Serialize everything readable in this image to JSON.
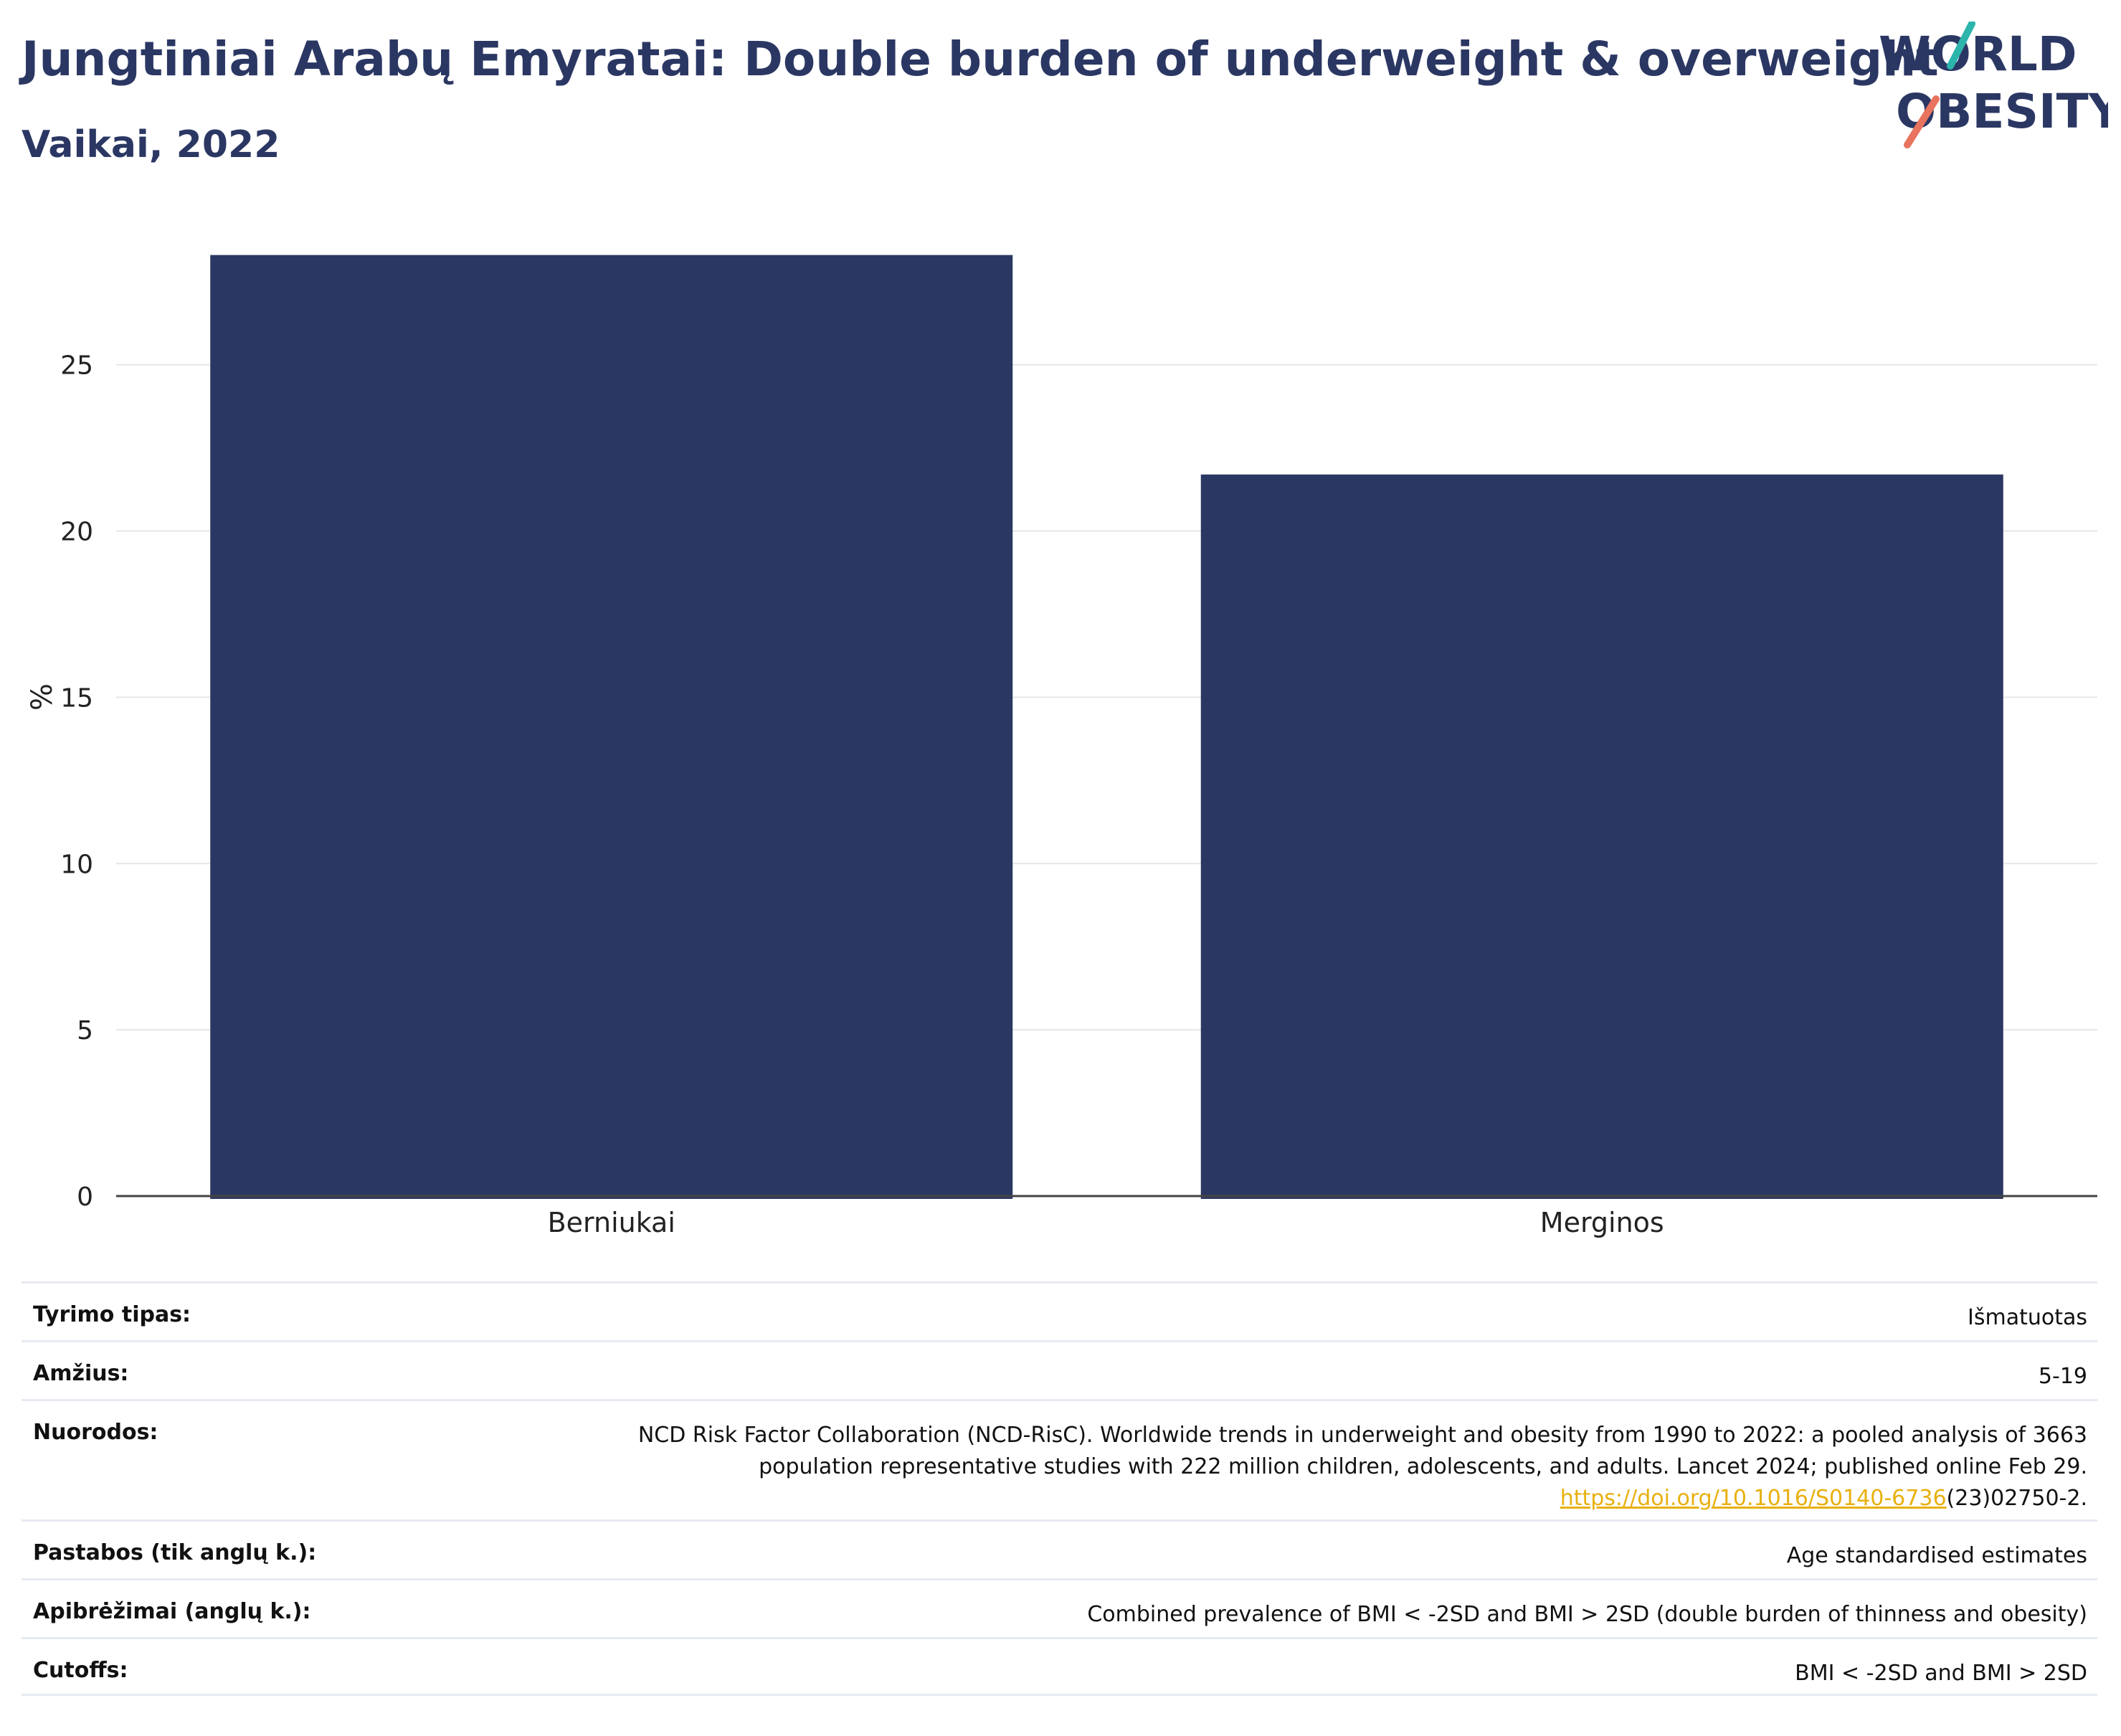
{
  "header": {
    "title": "Jungtiniai Arabų Emyratai: Double burden of underweight & overweight",
    "subtitle": "Vaikai, 2022"
  },
  "logo": {
    "line1": "WORLD",
    "line2": "OBESITY",
    "colors": {
      "text": "#2b3763",
      "slash_top": "#2cb5ac",
      "slash_bottom": "#e8735f"
    }
  },
  "chart_data": {
    "type": "bar",
    "categories": [
      "Berniukai",
      "Merginos"
    ],
    "values": [
      28.3,
      21.7
    ],
    "ylabel": "%",
    "yticks": [
      0,
      5,
      10,
      15,
      20,
      25
    ],
    "ylim": [
      0,
      29.5
    ],
    "grid": true,
    "bar_color": "#2b3763"
  },
  "meta": {
    "rows": [
      {
        "label": "Tyrimo tipas:",
        "value": "Išmatuotas"
      },
      {
        "label": "Amžius:",
        "value": "5-19"
      },
      {
        "label": "Nuorodos:",
        "value": "NCD Risk Factor Collaboration (NCD-RisC). Worldwide trends in underweight and obesity from 1990 to 2022: a pooled analysis of 3663 population representative studies with 222 million children, adolescents, and adults. Lancet 2024; published online Feb 29.",
        "link": "https://doi.org/10.1016/S0140-6736",
        "link_suffix": "(23)02750-2."
      },
      {
        "label": "Pastabos (tik anglų k.):",
        "value": "Age standardised estimates"
      },
      {
        "label": "Apibrėžimai (anglų k.):",
        "value": "Combined prevalence of BMI < -2SD and BMI > 2SD (double burden of thinness and obesity)"
      },
      {
        "label": "Cutoffs:",
        "value": "BMI < -2SD and BMI > 2SD"
      }
    ]
  }
}
